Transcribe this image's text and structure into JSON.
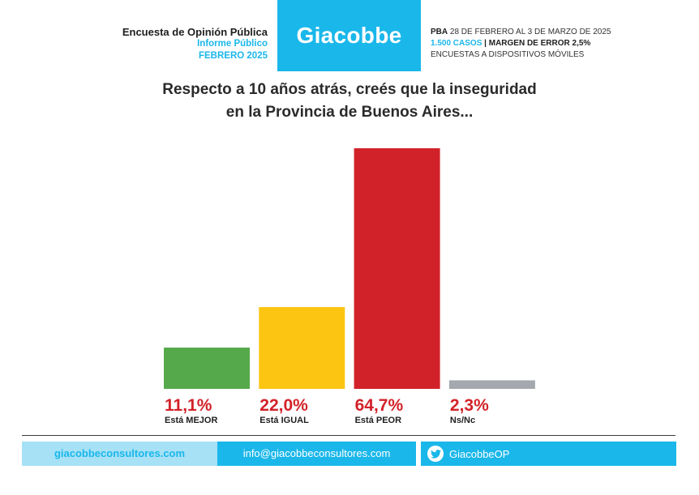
{
  "header": {
    "left_line1": "Encuesta de Opinión Pública",
    "left_line2": "Informe Público",
    "left_line3": "FEBRERO 2025",
    "brand": "Giacobbe",
    "right_line1_bold": "PBA",
    "right_line1_rest": "28 DE FEBRERO AL 3 DE MARZO DE 2025",
    "right_line2_cases": "1.500 CASOS",
    "right_line2_margin": "| MARGEN DE ERROR 2,5%",
    "right_line3": "ENCUESTAS A DISPOSITIVOS MÓVILES"
  },
  "question": {
    "line1": "Respecto a 10 años atrás, creés que la inseguridad",
    "line2": "en la Provincia de Buenos Aires..."
  },
  "chart_data": {
    "type": "bar",
    "categories": [
      "Está MEJOR",
      "Está IGUAL",
      "Está PEOR",
      "Ns/Nc"
    ],
    "values": [
      11.1,
      22.0,
      64.7,
      2.3
    ],
    "value_labels": [
      "11,1%",
      "22,0%",
      "64,7%",
      "2,3%"
    ],
    "colors": [
      "#56a94a",
      "#fcc512",
      "#d22229",
      "#a3a9ae"
    ],
    "label_color": "#d22229",
    "title": "",
    "xlabel": "",
    "ylabel": "",
    "ylim": [
      0,
      64.7
    ],
    "grid": false
  },
  "footer": {
    "website": "giacobbeconsultores.com",
    "email": "info@giacobbeconsultores.com",
    "twitter_icon": "twitter-bird-icon",
    "twitter": "GiacobbeOP"
  }
}
